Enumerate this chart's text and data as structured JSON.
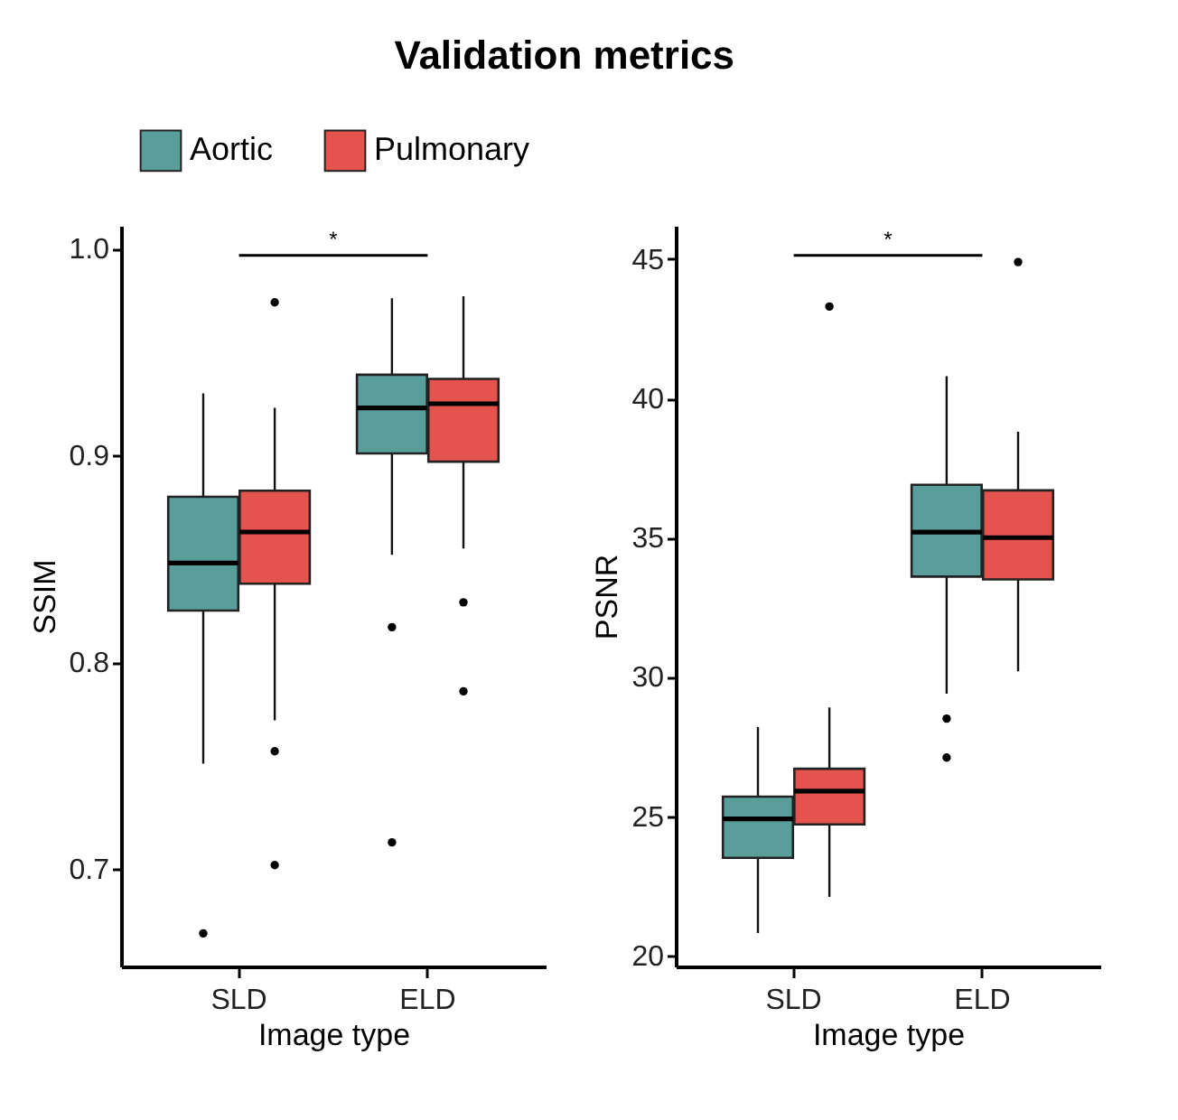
{
  "chart_data": [
    {
      "type": "box",
      "title": "Validation metrics",
      "categories": [
        "SLD",
        "ELD"
      ],
      "xlabel": "Image type",
      "ylabel": "SSIM",
      "ylim": [
        0.653,
        1.011
      ],
      "yticks": [
        {
          "value": 0.7,
          "label": "0.7"
        },
        {
          "value": 0.8,
          "label": "0.8"
        },
        {
          "value": 0.9,
          "label": "0.9"
        },
        {
          "value": 1,
          "label": "1.0"
        }
      ],
      "legend": "top",
      "annotations": [
        "*"
      ],
      "series": [
        {
          "name": "Aortic",
          "color": "#5a9e9b",
          "boxes": [
            {
              "low": 0.751,
              "q1": 0.825,
              "median": 0.848,
              "q3": 0.88,
              "high": 0.93,
              "outliers": [
                0.669
              ]
            },
            {
              "low": 0.852,
              "q1": 0.901,
              "median": 0.923,
              "q3": 0.939,
              "high": 0.976,
              "outliers": [
                0.817,
                0.713
              ]
            }
          ]
        },
        {
          "name": "Pulmonary",
          "color": "#e4534d",
          "boxes": [
            {
              "low": 0.772,
              "q1": 0.838,
              "median": 0.863,
              "q3": 0.883,
              "high": 0.923,
              "outliers": [
                0.974,
                0.757,
                0.702
              ]
            },
            {
              "low": 0.855,
              "q1": 0.897,
              "median": 0.925,
              "q3": 0.937,
              "high": 0.977,
              "outliers": [
                0.829,
                0.786
              ]
            }
          ]
        }
      ]
    },
    {
      "type": "box",
      "categories": [
        "SLD",
        "ELD"
      ],
      "xlabel": "Image type",
      "ylabel": "PSNR",
      "ylim": [
        19.6,
        46.2
      ],
      "yticks": [
        20,
        25,
        30,
        35,
        40,
        45
      ],
      "legend": "top",
      "annotations": [
        "*"
      ],
      "series": [
        {
          "name": "Aortic",
          "color": "#5a9e9b",
          "boxes": [
            {
              "low": 20.8,
              "q1": 23.5,
              "median": 24.9,
              "q3": 25.7,
              "high": 28.2
            },
            {
              "low": 29.4,
              "q1": 33.6,
              "median": 35.2,
              "q3": 36.9,
              "high": 40.8,
              "outliers": [
                28.5,
                27.1
              ]
            }
          ]
        },
        {
          "name": "Pulmonary",
          "color": "#e4534d",
          "boxes": [
            {
              "low": 22.1,
              "q1": 24.7,
              "median": 25.9,
              "q3": 26.7,
              "high": 28.9,
              "outliers": [
                43.3
              ]
            },
            {
              "low": 30.2,
              "q1": 33.5,
              "median": 35,
              "q3": 36.7,
              "high": 38.8,
              "outliers": [
                44.9
              ]
            }
          ]
        }
      ]
    }
  ]
}
